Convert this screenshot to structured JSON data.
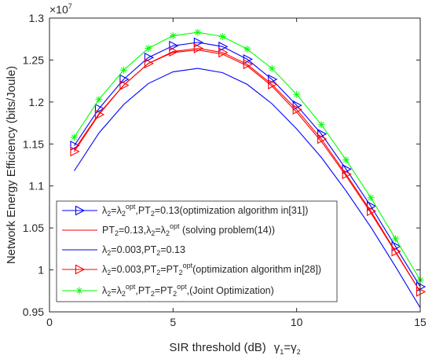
{
  "chart_data": {
    "type": "line",
    "title": "",
    "xlabel": "SIR threshold (dB)",
    "xlabel_suffix": {
      "g1": "γ",
      "s1": "1",
      "eq": "=",
      "g2": "γ",
      "s2": "2"
    },
    "ylabel": "Network Energy Efficiency (bits/Joule)",
    "y_exponent": {
      "base": "×10",
      "exp": "7"
    },
    "xlim": [
      0,
      15
    ],
    "ylim": [
      0.95,
      1.3
    ],
    "xticks": [
      "0",
      "5",
      "10",
      "15"
    ],
    "yticks": [
      "0.95",
      "1",
      "1.05",
      "1.1",
      "1.15",
      "1.2",
      "1.25",
      "1.3"
    ],
    "grid": false,
    "legend_position": "bottom-left",
    "x": [
      1,
      2,
      3,
      4,
      5,
      6,
      7,
      8,
      9,
      10,
      11,
      12,
      13,
      14,
      15
    ],
    "series": [
      {
        "color": "#0000ff",
        "marker": "triangle-right",
        "values": [
          1.148,
          1.192,
          1.227,
          1.253,
          1.267,
          1.271,
          1.266,
          1.251,
          1.227,
          1.196,
          1.162,
          1.12,
          1.076,
          1.028,
          0.98
        ],
        "legend": [
          {
            "t": "λ"
          },
          {
            "t": "2",
            "sub": true
          },
          {
            "t": "=λ"
          },
          {
            "t": "2",
            "sub": true
          },
          {
            "t": "opt",
            "sup": true
          },
          {
            "t": ",PT"
          },
          {
            "t": "2",
            "sub": true
          },
          {
            "t": "=0.13(optimization algorithm in[31])"
          }
        ]
      },
      {
        "color": "#ff0000",
        "marker": "none",
        "values": [
          1.143,
          1.186,
          1.22,
          1.246,
          1.259,
          1.262,
          1.257,
          1.243,
          1.219,
          1.188,
          1.153,
          1.112,
          1.068,
          1.021,
          0.974
        ],
        "legend": [
          {
            "t": "PT"
          },
          {
            "t": "2",
            "sub": true
          },
          {
            "t": "=0.13,λ"
          },
          {
            "t": "2",
            "sub": true
          },
          {
            "t": "=λ"
          },
          {
            "t": "2",
            "sub": true
          },
          {
            "t": "opt",
            "sup": true
          },
          {
            "t": " (solving problem(14))"
          }
        ]
      },
      {
        "color": "#0000ff",
        "marker": "none",
        "values": [
          1.118,
          1.163,
          1.197,
          1.222,
          1.236,
          1.24,
          1.235,
          1.221,
          1.198,
          1.168,
          1.134,
          1.094,
          1.051,
          1.004,
          0.955
        ],
        "legend": [
          {
            "t": "λ"
          },
          {
            "t": "2",
            "sub": true
          },
          {
            "t": "=0.003,PT"
          },
          {
            "t": "2",
            "sub": true
          },
          {
            "t": "=0.13"
          }
        ]
      },
      {
        "color": "#ff0000",
        "marker": "triangle-right",
        "values": [
          1.141,
          1.185,
          1.22,
          1.246,
          1.26,
          1.264,
          1.259,
          1.245,
          1.221,
          1.191,
          1.156,
          1.114,
          1.07,
          1.022,
          0.974
        ],
        "legend": [
          {
            "t": "λ"
          },
          {
            "t": "2",
            "sub": true
          },
          {
            "t": "=0.003,PT"
          },
          {
            "t": "2",
            "sub": true
          },
          {
            "t": "=PT"
          },
          {
            "t": "2",
            "sub": true
          },
          {
            "t": "opt",
            "sup": true
          },
          {
            "t": "(optimization algorithm in[28])"
          }
        ]
      },
      {
        "color": "#00ff00",
        "marker": "asterisk",
        "values": [
          1.158,
          1.203,
          1.238,
          1.264,
          1.279,
          1.283,
          1.278,
          1.263,
          1.24,
          1.209,
          1.173,
          1.131,
          1.086,
          1.037,
          0.988
        ],
        "legend": [
          {
            "t": "λ"
          },
          {
            "t": "2",
            "sub": true
          },
          {
            "t": "=λ"
          },
          {
            "t": "2",
            "sub": true
          },
          {
            "t": "opt",
            "sup": true
          },
          {
            "t": ",PT"
          },
          {
            "t": "2",
            "sub": true
          },
          {
            "t": "=PT"
          },
          {
            "t": "2",
            "sub": true
          },
          {
            "t": "opt",
            "sup": true
          },
          {
            "t": ",(Joint Optimization)"
          }
        ]
      }
    ]
  }
}
